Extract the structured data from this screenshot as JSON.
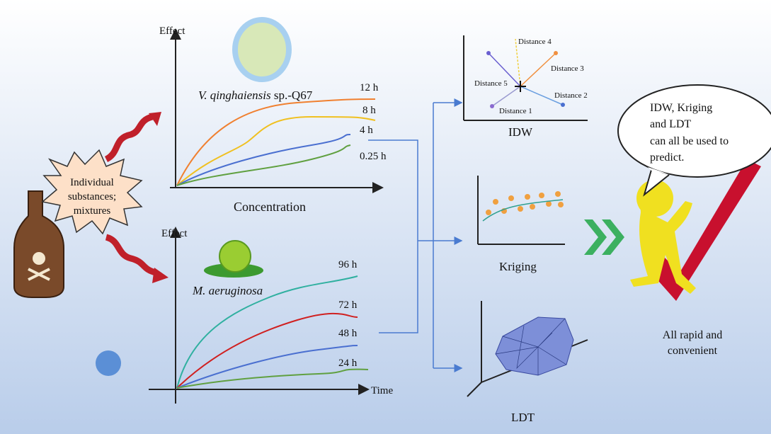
{
  "left_panel": {
    "label_lines": [
      "Individual",
      "substances;",
      "mixtures"
    ]
  },
  "top_chart": {
    "y_label": "Effect",
    "x_label": "Concentration",
    "organism_italic": "V. qinghaiensis",
    "organism_suffix": "sp.-Q67",
    "curve_labels": [
      "12 h",
      "8 h",
      "4 h",
      "0.25 h"
    ]
  },
  "bottom_chart": {
    "y_label": "Effect",
    "x_label": "Time",
    "organism": "M. aeruginosa",
    "curve_labels": [
      "96 h",
      "72 h",
      "48 h",
      "24 h"
    ]
  },
  "methods": {
    "idw": {
      "title": "IDW",
      "distances": [
        "Distance 4",
        "Distance 3",
        "Distance 5",
        "Distance 2",
        "Distance 1"
      ]
    },
    "kriging": {
      "title": "Kriging"
    },
    "ldt": {
      "title": "LDT"
    }
  },
  "speech_bubble": {
    "lines": [
      "IDW, Kriging",
      "and LDT",
      "can all be used to",
      "predict."
    ]
  },
  "conclusion": {
    "lines": [
      "All rapid and",
      "convenient"
    ]
  }
}
